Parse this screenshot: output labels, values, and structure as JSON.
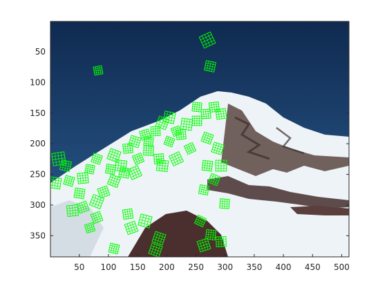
{
  "image": {
    "subject": "snow-covered mountain",
    "description": "Mountain peak under deep blue sky with green SURF-like descriptor grid overlays clustered on the left ridge"
  },
  "axes": {
    "x_ticks": [
      "50",
      "100",
      "150",
      "200",
      "250",
      "300",
      "350",
      "400",
      "450",
      "500"
    ],
    "y_ticks": [
      "50",
      "100",
      "150",
      "200",
      "250",
      "300",
      "350"
    ],
    "x_tick_values": [
      50,
      100,
      150,
      200,
      250,
      300,
      350,
      400,
      450,
      500
    ],
    "y_tick_values": [
      50,
      100,
      150,
      200,
      250,
      300,
      350
    ],
    "xlim": [
      0.5,
      512.5
    ],
    "ylim": [
      0.5,
      384.5
    ]
  },
  "feature_color": "#00ff00",
  "feature_count_rendered": "many",
  "colors": {
    "sky_top": "#0f2a50",
    "sky_bottom": "#2d5f93",
    "snow": "#eef3f7",
    "rock": "#4c3a37",
    "feature": "#00ff00"
  }
}
